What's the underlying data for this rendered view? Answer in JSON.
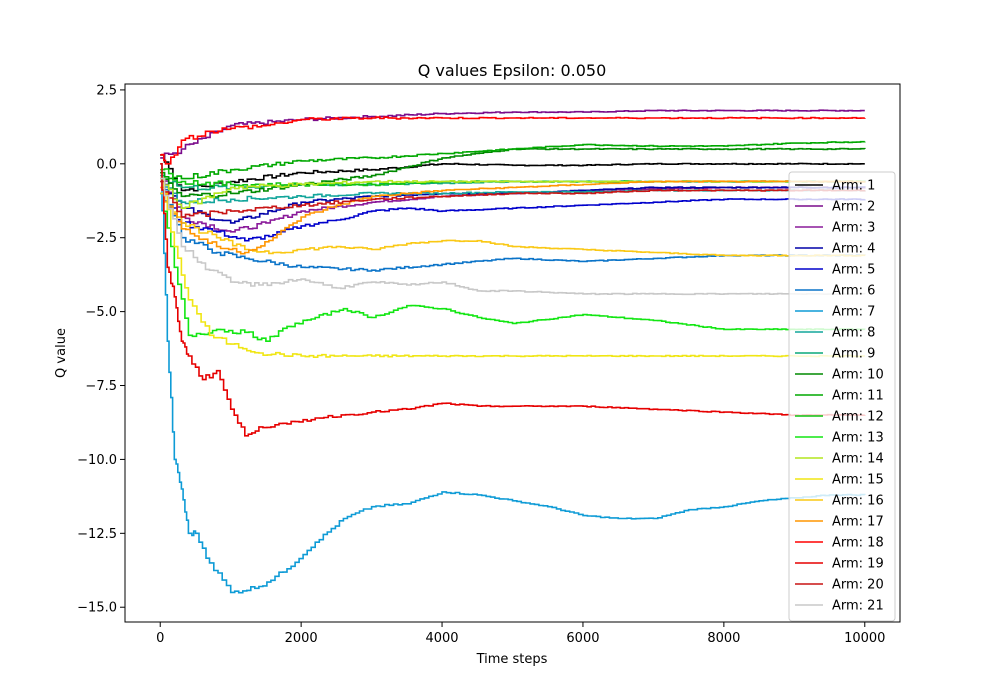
{
  "chart_data": {
    "type": "line",
    "title": "Q values Epsilon: 0.050",
    "xlabel": "Time steps",
    "ylabel": "Q value",
    "xlim": [
      -500,
      10500
    ],
    "ylim": [
      -15.5,
      2.7
    ],
    "xticks": [
      0,
      2000,
      4000,
      6000,
      8000,
      10000
    ],
    "xtick_labels": [
      "0",
      "2000",
      "4000",
      "6000",
      "8000",
      "10000"
    ],
    "yticks": [
      2.5,
      0.0,
      -2.5,
      -5.0,
      -7.5,
      -10.0,
      -12.5,
      -15.0
    ],
    "ytick_labels": [
      "2.5",
      "0.0",
      "−2.5",
      "−5.0",
      "−7.5",
      "−10.0",
      "−12.5",
      "−15.0"
    ],
    "grid": false,
    "legend_position": "right",
    "series": [
      {
        "name": "Arm: 1",
        "color": "#000000",
        "x": [
          0,
          300,
          1000,
          2000,
          3000,
          4000,
          5000,
          6000,
          7000,
          8000,
          9000,
          10000
        ],
        "values": [
          0.3,
          -0.9,
          -0.6,
          -0.3,
          -0.2,
          0.0,
          -0.05,
          -0.05,
          0.0,
          0.0,
          0.0,
          0.0
        ]
      },
      {
        "name": "Arm: 2",
        "color": "#7a0b8b",
        "x": [
          0,
          300,
          1000,
          2000,
          3000,
          4000,
          5000,
          6000,
          7000,
          8000,
          9000,
          10000
        ],
        "values": [
          0.2,
          0.5,
          1.3,
          1.5,
          1.6,
          1.7,
          1.75,
          1.75,
          1.8,
          1.8,
          1.8,
          1.8
        ]
      },
      {
        "name": "Arm: 3",
        "color": "#8a1a9a",
        "x": [
          0,
          300,
          1000,
          1500,
          2000,
          3000,
          4000,
          5000,
          6000,
          7000,
          8000,
          9000,
          10000
        ],
        "values": [
          -0.3,
          -1.8,
          -2.3,
          -2.0,
          -1.6,
          -1.3,
          -1.1,
          -1.0,
          -0.9,
          -0.85,
          -0.8,
          -0.8,
          -0.8
        ]
      },
      {
        "name": "Arm: 4",
        "color": "#0000a8",
        "x": [
          0,
          300,
          1000,
          2000,
          3000,
          4000,
          5000,
          6000,
          7000,
          8000,
          9000,
          10000
        ],
        "values": [
          -0.5,
          -1.5,
          -2.0,
          -1.3,
          -1.1,
          -1.0,
          -1.0,
          -0.9,
          -0.8,
          -0.8,
          -0.8,
          -0.8
        ]
      },
      {
        "name": "Arm: 5",
        "color": "#0000cc",
        "x": [
          0,
          300,
          800,
          1200,
          1600,
          2000,
          2500,
          3000,
          3500,
          4000,
          5000,
          6000,
          7000,
          8000,
          9000,
          10000
        ],
        "values": [
          -1.0,
          -2.0,
          -2.3,
          -2.6,
          -2.4,
          -2.1,
          -1.9,
          -1.6,
          -1.5,
          -1.6,
          -1.5,
          -1.4,
          -1.3,
          -1.2,
          -1.2,
          -1.2
        ]
      },
      {
        "name": "Arm: 6",
        "color": "#0a73c8",
        "x": [
          0,
          300,
          800,
          1200,
          2000,
          3000,
          4000,
          5000,
          6000,
          7000,
          8000,
          9000,
          10000
        ],
        "values": [
          -0.5,
          -2.5,
          -3.0,
          -3.2,
          -3.5,
          -3.6,
          -3.4,
          -3.2,
          -3.3,
          -3.2,
          -3.1,
          -3.1,
          -3.1
        ]
      },
      {
        "name": "Arm: 7",
        "color": "#0e9bd6",
        "x": [
          0,
          100,
          200,
          300,
          400,
          500,
          700,
          1000,
          1400,
          1800,
          2200,
          2600,
          3000,
          3500,
          4000,
          4500,
          5000,
          5500,
          6000,
          6500,
          7000,
          7500,
          8000,
          8500,
          9000,
          9500,
          10000
        ],
        "values": [
          0.0,
          -6.0,
          -10.0,
          -11.0,
          -12.5,
          -12.5,
          -13.5,
          -14.5,
          -14.3,
          -13.7,
          -12.8,
          -12.0,
          -11.6,
          -11.5,
          -11.1,
          -11.2,
          -11.4,
          -11.6,
          -11.9,
          -12.0,
          -12.0,
          -11.7,
          -11.6,
          -11.4,
          -11.3,
          -11.2,
          -11.2
        ]
      },
      {
        "name": "Arm: 8",
        "color": "#12a59b",
        "x": [
          0,
          300,
          1000,
          2000,
          3000,
          4000,
          5000,
          6000,
          7000,
          8000,
          9000,
          10000
        ],
        "values": [
          -0.6,
          -1.3,
          -1.2,
          -1.1,
          -1.0,
          -1.0,
          -0.95,
          -0.95,
          -0.9,
          -0.9,
          -0.9,
          -0.9
        ]
      },
      {
        "name": "Arm: 9",
        "color": "#0aa878",
        "x": [
          0,
          300,
          1000,
          2000,
          3000,
          4000,
          5000,
          6000,
          7000,
          8000,
          9000,
          10000
        ],
        "values": [
          -0.4,
          -0.8,
          -0.8,
          -0.7,
          -0.7,
          -0.65,
          -0.6,
          -0.6,
          -0.6,
          -0.6,
          -0.6,
          -0.6
        ]
      },
      {
        "name": "Arm: 10",
        "color": "#008a00",
        "x": [
          0,
          300,
          1000,
          2000,
          3000,
          4000,
          5000,
          6000,
          7000,
          8000,
          9000,
          10000
        ],
        "values": [
          -0.5,
          -1.1,
          -1.0,
          -0.7,
          -0.4,
          0.2,
          0.5,
          0.5,
          0.5,
          0.5,
          0.5,
          0.5
        ]
      },
      {
        "name": "Arm: 11",
        "color": "#00a800",
        "x": [
          0,
          300,
          1000,
          2000,
          3000,
          4000,
          5000,
          6000,
          7000,
          8000,
          9000,
          10000
        ],
        "values": [
          -0.3,
          -0.5,
          -0.2,
          0.1,
          0.2,
          0.35,
          0.5,
          0.65,
          0.6,
          0.6,
          0.7,
          0.75
        ]
      },
      {
        "name": "Arm: 12",
        "color": "#10c410",
        "x": [
          0,
          300,
          1000,
          2000,
          3000,
          4000,
          5000,
          6000,
          7000,
          8000,
          9000,
          10000
        ],
        "values": [
          -0.2,
          -0.6,
          -0.7,
          -0.7,
          -0.7,
          -0.6,
          -0.6,
          -0.6,
          -0.6,
          -0.6,
          -0.6,
          -0.6
        ]
      },
      {
        "name": "Arm: 13",
        "color": "#12e612",
        "x": [
          0,
          200,
          400,
          800,
          1200,
          1500,
          1800,
          2200,
          2600,
          3000,
          3500,
          4000,
          4500,
          5000,
          6000,
          7000,
          8000,
          9000,
          10000
        ],
        "values": [
          -1.0,
          -3.5,
          -5.8,
          -5.6,
          -5.7,
          -6.0,
          -5.5,
          -5.2,
          -4.9,
          -5.2,
          -4.8,
          -4.9,
          -5.2,
          -5.4,
          -5.1,
          -5.3,
          -5.6,
          -5.6,
          -5.6
        ]
      },
      {
        "name": "Arm: 14",
        "color": "#b4e61e",
        "x": [
          0,
          300,
          1000,
          2000,
          3000,
          4000,
          5000,
          6000,
          7000,
          8000,
          9000,
          10000
        ],
        "values": [
          -0.5,
          -1.5,
          -0.8,
          -0.7,
          -0.6,
          -0.6,
          -0.6,
          -0.6,
          -0.6,
          -0.6,
          -0.6,
          -0.6
        ]
      },
      {
        "name": "Arm: 15",
        "color": "#f0e614",
        "x": [
          0,
          200,
          400,
          700,
          1000,
          1400,
          2000,
          3000,
          4000,
          5000,
          6000,
          7000,
          8000,
          9000,
          10000
        ],
        "values": [
          -0.5,
          -2.8,
          -4.6,
          -5.8,
          -6.1,
          -6.4,
          -6.5,
          -6.5,
          -6.5,
          -6.5,
          -6.5,
          -6.5,
          -6.5,
          -6.5,
          -6.5
        ]
      },
      {
        "name": "Arm: 16",
        "color": "#fac814",
        "x": [
          0,
          300,
          800,
          1200,
          1600,
          2000,
          2500,
          3000,
          3500,
          4000,
          4500,
          5000,
          6000,
          7000,
          8000,
          9000,
          10000
        ],
        "values": [
          -1.0,
          -2.0,
          -2.5,
          -2.9,
          -3.0,
          -2.9,
          -2.8,
          -2.9,
          -2.7,
          -2.6,
          -2.6,
          -2.8,
          -2.9,
          -3.0,
          -3.1,
          -3.1,
          -3.1
        ]
      },
      {
        "name": "Arm: 17",
        "color": "#ff9600",
        "x": [
          0,
          300,
          800,
          1200,
          1600,
          2000,
          2500,
          3000,
          4000,
          5000,
          6000,
          7000,
          8000,
          9000,
          10000
        ],
        "values": [
          -0.8,
          -2.2,
          -2.8,
          -3.0,
          -2.5,
          -1.8,
          -1.4,
          -1.1,
          -0.9,
          -0.8,
          -0.7,
          -0.6,
          -0.6,
          -0.6,
          -0.6
        ]
      },
      {
        "name": "Arm: 18",
        "color": "#ff0000",
        "x": [
          0,
          100,
          300,
          700,
          1000,
          1500,
          2000,
          3000,
          4000,
          5000,
          6000,
          7000,
          8000,
          9000,
          10000
        ],
        "values": [
          0.3,
          0.0,
          0.8,
          1.1,
          1.2,
          1.3,
          1.5,
          1.55,
          1.55,
          1.55,
          1.55,
          1.55,
          1.55,
          1.55,
          1.55
        ]
      },
      {
        "name": "Arm: 19",
        "color": "#e60000",
        "x": [
          0,
          100,
          200,
          300,
          400,
          600,
          800,
          1000,
          1200,
          1400,
          1800,
          2200,
          3000,
          3500,
          4000,
          4500,
          5000,
          6000,
          7000,
          8000,
          9000,
          10000
        ],
        "values": [
          0.0,
          -3.5,
          -4.5,
          -6.0,
          -6.5,
          -7.3,
          -7.0,
          -8.3,
          -9.2,
          -8.9,
          -8.8,
          -8.6,
          -8.4,
          -8.3,
          -8.1,
          -8.2,
          -8.2,
          -8.2,
          -8.3,
          -8.4,
          -8.5,
          -8.5
        ]
      },
      {
        "name": "Arm: 20",
        "color": "#c81414",
        "x": [
          0,
          300,
          1000,
          2000,
          3000,
          4000,
          5000,
          6000,
          7000,
          8000,
          9000,
          10000
        ],
        "values": [
          -0.6,
          -1.8,
          -1.6,
          -1.4,
          -1.2,
          -1.1,
          -1.0,
          -1.0,
          -0.9,
          -0.9,
          -0.9,
          -0.9
        ]
      },
      {
        "name": "Arm: 21",
        "color": "#c8c8c8",
        "x": [
          0,
          300,
          700,
          1000,
          1400,
          2000,
          2500,
          3000,
          3500,
          4000,
          4500,
          5000,
          6000,
          7000,
          8000,
          9000,
          10000
        ],
        "values": [
          -0.5,
          -2.8,
          -3.6,
          -4.0,
          -4.1,
          -3.9,
          -4.2,
          -4.0,
          -4.1,
          -4.0,
          -4.3,
          -4.3,
          -4.4,
          -4.4,
          -4.4,
          -4.4,
          -4.4
        ]
      }
    ]
  }
}
